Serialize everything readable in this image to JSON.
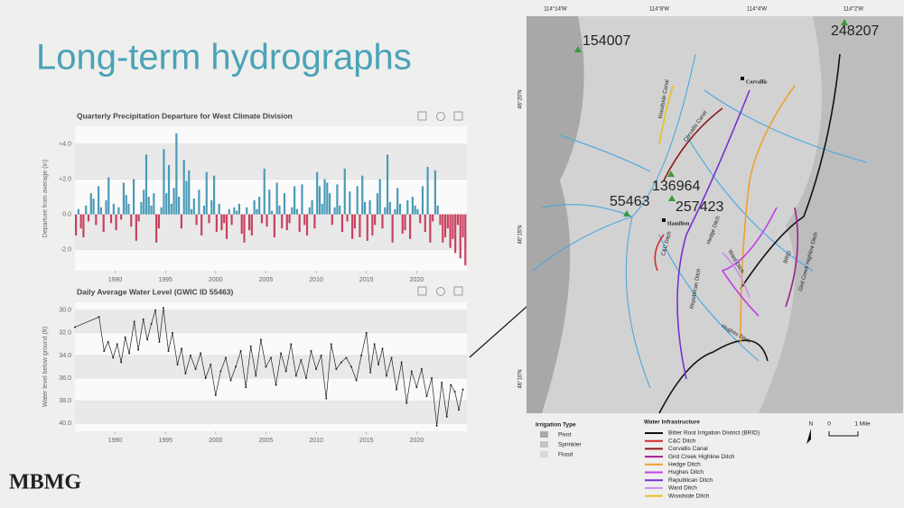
{
  "slide_title": "Long-term hydrographs",
  "logo": "MBMG",
  "chart_data": [
    {
      "type": "bar",
      "title": "Quarterly Precipitation Departure for West Climate Division",
      "ylabel": "Departure from average (in)",
      "color_positive": "#4a9ab7",
      "color_negative": "#c8405e",
      "grid": true,
      "xlim": [
        1986,
        2025
      ],
      "xticks": [
        1990,
        1995,
        2000,
        2005,
        2010,
        2015,
        2020
      ],
      "ylim": [
        -3.2,
        5.0
      ],
      "yticks": [
        {
          "value": 4,
          "label": "+4.0"
        },
        {
          "value": 2,
          "label": "+2.0"
        },
        {
          "value": 0,
          "label": "0.0"
        },
        {
          "value": -2,
          "label": "-2.0"
        }
      ],
      "x": [
        1986,
        1986.25,
        1986.5,
        1986.75,
        1987,
        1987.25,
        1987.5,
        1987.75,
        1988,
        1988.25,
        1988.5,
        1988.75,
        1989,
        1989.25,
        1989.5,
        1989.75,
        1990,
        1990.25,
        1990.5,
        1990.75,
        1991,
        1991.25,
        1991.5,
        1991.75,
        1992,
        1992.25,
        1992.5,
        1992.75,
        1993,
        1993.25,
        1993.5,
        1993.75,
        1994,
        1994.25,
        1994.5,
        1994.75,
        1995,
        1995.25,
        1995.5,
        1995.75,
        1996,
        1996.25,
        1996.5,
        1996.75,
        1997,
        1997.25,
        1997.5,
        1997.75,
        1998,
        1998.25,
        1998.5,
        1998.75,
        1999,
        1999.25,
        1999.5,
        1999.75,
        2000,
        2000.25,
        2000.5,
        2000.75,
        2001,
        2001.25,
        2001.5,
        2001.75,
        2002,
        2002.25,
        2002.5,
        2002.75,
        2003,
        2003.25,
        2003.5,
        2003.75,
        2004,
        2004.25,
        2004.5,
        2004.75,
        2005,
        2005.25,
        2005.5,
        2005.75,
        2006,
        2006.25,
        2006.5,
        2006.75,
        2007,
        2007.25,
        2007.5,
        2007.75,
        2008,
        2008.25,
        2008.5,
        2008.75,
        2009,
        2009.25,
        2009.5,
        2009.75,
        2010,
        2010.25,
        2010.5,
        2010.75,
        2011,
        2011.25,
        2011.5,
        2011.75,
        2012,
        2012.25,
        2012.5,
        2012.75,
        2013,
        2013.25,
        2013.5,
        2013.75,
        2014,
        2014.25,
        2014.5,
        2014.75,
        2015,
        2015.25,
        2015.5,
        2015.75,
        2016,
        2016.25,
        2016.5,
        2016.75,
        2017,
        2017.25,
        2017.5,
        2017.75,
        2018,
        2018.25,
        2018.5,
        2018.75,
        2019,
        2019.25,
        2019.5,
        2019.75,
        2020,
        2020.25,
        2020.5,
        2020.75,
        2021,
        2021.25,
        2021.5,
        2021.75,
        2022,
        2022.25,
        2022.5,
        2022.75,
        2023,
        2023.25,
        2023.5,
        2023.75,
        2024,
        2024.25,
        2024.5,
        2024.75
      ],
      "values": [
        -1.2,
        0.3,
        -0.8,
        -1.3,
        0.5,
        -0.4,
        1.2,
        0.9,
        -0.6,
        1.6,
        0.4,
        -1.0,
        0.8,
        2.1,
        -0.5,
        0.6,
        -0.9,
        0.4,
        -0.3,
        1.8,
        1.1,
        0.6,
        -0.7,
        2.0,
        -1.5,
        -0.4,
        0.7,
        1.4,
        3.4,
        1.0,
        0.5,
        1.2,
        -1.6,
        -0.8,
        0.4,
        3.7,
        1.2,
        2.8,
        0.6,
        1.5,
        4.6,
        1.0,
        -0.8,
        3.1,
        1.9,
        2.5,
        0.3,
        0.9,
        -0.6,
        1.4,
        -1.2,
        0.5,
        2.4,
        -0.5,
        0.8,
        2.2,
        -1.0,
        0.6,
        -0.9,
        -0.5,
        -1.4,
        0.3,
        -0.6,
        0.4,
        0.2,
        0.6,
        -1.1,
        -1.6,
        0.4,
        -0.9,
        -1.2,
        0.8,
        0.3,
        1.0,
        -0.5,
        2.6,
        -0.7,
        1.4,
        0.2,
        -1.3,
        1.8,
        0.5,
        -0.8,
        1.2,
        -0.9,
        -0.5,
        0.4,
        1.6,
        0.3,
        -1.0,
        1.7,
        -0.6,
        -1.2,
        0.4,
        0.8,
        -0.8,
        2.4,
        1.6,
        0.6,
        2.0,
        1.8,
        1.2,
        -0.6,
        0.4,
        1.7,
        0.5,
        -1.0,
        2.6,
        -0.4,
        1.3,
        -1.4,
        -0.8,
        1.6,
        -1.3,
        2.2,
        0.7,
        -1.5,
        0.8,
        -1.2,
        -0.6,
        1.2,
        2.0,
        -0.8,
        0.4,
        3.4,
        0.7,
        -1.6,
        0.3,
        1.5,
        0.6,
        -1.1,
        -0.9,
        0.8,
        -1.4,
        1.0,
        0.5,
        0.3,
        -0.5,
        1.6,
        -1.0,
        2.7,
        -1.6,
        -0.4,
        2.5,
        0.5,
        -0.6,
        -1.6,
        -1.3,
        -0.8,
        -1.9,
        -1.4,
        -2.2,
        -0.6,
        -2.5,
        -1.3,
        -2.9
      ]
    },
    {
      "type": "line",
      "title": "Daily Average Water Level (GWIC ID 55463)",
      "ylabel": "Water level below ground (ft)",
      "color": "#222222",
      "grid": true,
      "xlim": [
        1986,
        2025
      ],
      "xticks": [
        1990,
        1995,
        2000,
        2005,
        2010,
        2015,
        2020
      ],
      "ylim": [
        40.7,
        29.3
      ],
      "yticks": [
        {
          "value": 30,
          "label": "30.0"
        },
        {
          "value": 32,
          "label": "32.0"
        },
        {
          "value": 34,
          "label": "34.0"
        },
        {
          "value": 36,
          "label": "36.0"
        },
        {
          "value": 38,
          "label": "38.0"
        },
        {
          "value": 40,
          "label": "40.0"
        }
      ],
      "x": [
        1986.0,
        1988.4,
        1988.9,
        1989.3,
        1989.8,
        1990.2,
        1990.6,
        1991.0,
        1991.4,
        1991.9,
        1992.3,
        1992.8,
        1993.2,
        1993.6,
        1994.0,
        1994.4,
        1994.8,
        1995.3,
        1995.7,
        1996.2,
        1996.6,
        1997.0,
        1997.5,
        1998.0,
        1998.5,
        1999.0,
        1999.5,
        2000.0,
        2000.5,
        2001.0,
        2001.5,
        2002.0,
        2002.5,
        2003.0,
        2003.5,
        2004.0,
        2004.5,
        2005.0,
        2005.5,
        2006.0,
        2006.5,
        2007.0,
        2007.5,
        2008.0,
        2008.5,
        2009.0,
        2009.5,
        2010.0,
        2010.5,
        2011.0,
        2011.5,
        2012.0,
        2012.5,
        2013.0,
        2013.5,
        2014.0,
        2014.5,
        2015.0,
        2015.4,
        2015.8,
        2016.2,
        2016.6,
        2017.0,
        2017.5,
        2018.0,
        2018.5,
        2019.0,
        2019.5,
        2020.0,
        2020.5,
        2021.0,
        2021.5,
        2022.0,
        2022.5,
        2023.0,
        2023.4,
        2023.8,
        2024.2,
        2024.6
      ],
      "values": [
        31.5,
        30.6,
        33.6,
        32.8,
        34.2,
        33.0,
        34.6,
        32.4,
        33.8,
        31.0,
        33.5,
        30.8,
        32.6,
        31.2,
        30.0,
        32.8,
        29.8,
        33.6,
        32.0,
        34.8,
        33.4,
        35.6,
        34.0,
        35.2,
        33.8,
        36.0,
        34.8,
        37.5,
        35.4,
        34.2,
        36.2,
        35.0,
        33.6,
        36.8,
        33.2,
        35.8,
        32.6,
        35.0,
        34.2,
        36.6,
        33.8,
        35.4,
        33.0,
        35.8,
        34.4,
        36.0,
        33.6,
        35.2,
        34.0,
        37.8,
        33.0,
        35.2,
        34.6,
        34.2,
        35.0,
        36.2,
        34.0,
        32.0,
        35.5,
        33.0,
        34.8,
        33.4,
        35.8,
        34.2,
        37.0,
        34.6,
        38.2,
        35.4,
        36.8,
        35.2,
        37.6,
        36.0,
        40.2,
        36.4,
        39.4,
        36.6,
        37.2,
        38.8,
        37.0
      ]
    }
  ],
  "map": {
    "coordinates": [
      "114°14'W",
      "114°8'W",
      "114°4'W",
      "114°2'W"
    ],
    "latitudes": [
      "46°20'N",
      "46°15'N",
      "46°10'N"
    ],
    "stations": [
      "154007",
      "248207",
      "136964",
      "257423",
      "55463"
    ],
    "places": [
      "Corvallis",
      "Hamilton"
    ],
    "ditch_labels": [
      "Woodside Canal",
      "Corvallis Canal",
      "C&C Ditch",
      "Republican Ditch",
      "Hedge Ditch",
      "Ward Ditch",
      "BRID",
      "Gird Creek Highline Ditch",
      "Hughes Ditch"
    ],
    "irrigation_legend": {
      "title": "Irrigation Type",
      "items": [
        "Pivot",
        "Sprinkler",
        "Flood"
      ]
    },
    "infrastructure_legend": {
      "title": "Water Infrastructure",
      "items": [
        {
          "name": "Bitter Root Irrigation District (BRID)",
          "color": "#111111"
        },
        {
          "name": "C&C Ditch",
          "color": "#d02a2a"
        },
        {
          "name": "Corvallis Canal",
          "color": "#8b1a1a"
        },
        {
          "name": "Gird Creek Highline Ditch",
          "color": "#a0208f"
        },
        {
          "name": "Hedge Ditch",
          "color": "#f0a030"
        },
        {
          "name": "Hughes Ditch",
          "color": "#c040e8"
        },
        {
          "name": "Republican Ditch",
          "color": "#7a2fd0"
        },
        {
          "name": "Ward Ditch",
          "color": "#c890e8"
        },
        {
          "name": "Woodside Ditch",
          "color": "#e8c020"
        }
      ]
    },
    "north": "N",
    "scale": [
      "0",
      "1 Mile"
    ]
  }
}
